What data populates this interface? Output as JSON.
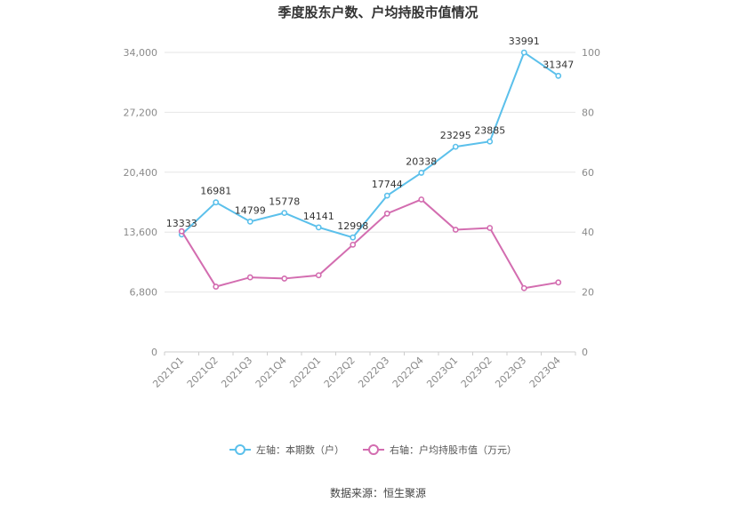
{
  "chart_data": {
    "type": "line",
    "title": "季度股东户数、户均持股市值情况",
    "categories": [
      "2021Q1",
      "2021Q2",
      "2021Q3",
      "2021Q4",
      "2022Q1",
      "2022Q2",
      "2022Q3",
      "2022Q4",
      "2023Q1",
      "2023Q2",
      "2023Q3",
      "2023Q4"
    ],
    "series": [
      {
        "name": "左轴：本期数（户）",
        "axis": "left",
        "color": "#5bc0eb",
        "values": [
          13333,
          16981,
          14799,
          15778,
          14141,
          12998,
          17744,
          20338,
          23295,
          23885,
          33991,
          31347
        ],
        "labels": [
          "13333",
          "16981",
          "14799",
          "15778",
          "14141",
          "12998",
          "17744",
          "20338",
          "23295",
          "23885",
          "33991",
          "31347"
        ]
      },
      {
        "name": "右轴：户均持股市值（万元）",
        "axis": "right",
        "color": "#d36db0",
        "values": [
          40.3,
          21.8,
          24.9,
          24.5,
          25.6,
          35.8,
          46.2,
          50.9,
          40.8,
          41.4,
          21.3,
          23.2
        ]
      }
    ],
    "left_axis": {
      "ylim": [
        0,
        34000
      ],
      "ticks": [
        "0",
        "6,800",
        "13,600",
        "20,400",
        "27,200",
        "34,000"
      ]
    },
    "right_axis": {
      "ylim": [
        0,
        100
      ],
      "ticks": [
        "0",
        "20",
        "40",
        "60",
        "80",
        "100"
      ]
    },
    "grid": true,
    "legend_position": "bottom"
  },
  "source": "数据来源：恒生聚源"
}
